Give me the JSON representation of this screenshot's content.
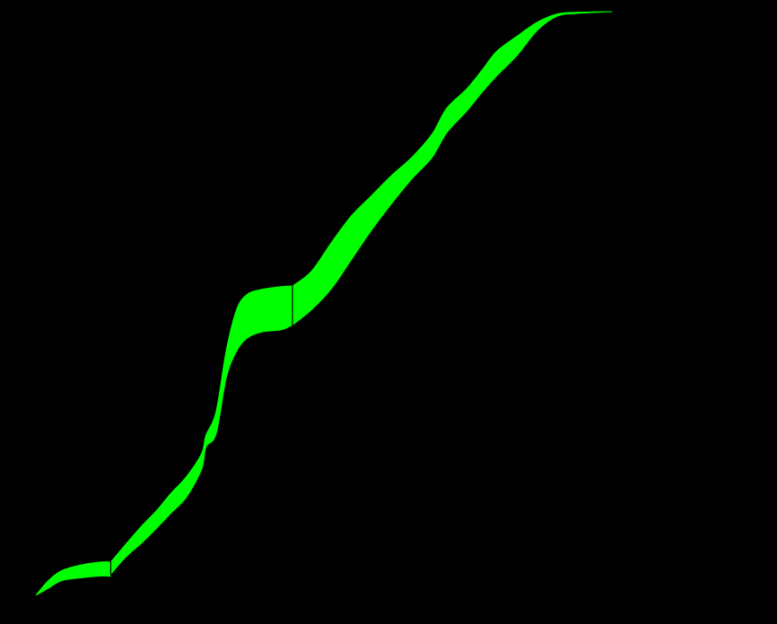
{
  "chart_data": {
    "type": "area",
    "title": "",
    "xlabel": "",
    "ylabel": "",
    "xlim": [
      0,
      1
    ],
    "ylim": [
      0,
      1
    ],
    "grid": false,
    "background": "#000000",
    "band_color": "#00ff00",
    "series": [
      {
        "kind": "band",
        "x": [
          0.0,
          0.017,
          0.035,
          0.062,
          0.089,
          0.102,
          0.103,
          0.124,
          0.145,
          0.166,
          0.186,
          0.207,
          0.228,
          0.234,
          0.248,
          0.262,
          0.276,
          0.29,
          0.31,
          0.338,
          0.352,
          0.353,
          0.379,
          0.407,
          0.434,
          0.462,
          0.49,
          0.517,
          0.545,
          0.565,
          0.593,
          0.614,
          0.634,
          0.662,
          0.69,
          0.717,
          0.745,
          0.793
        ],
        "lower": [
          0.0,
          0.012,
          0.025,
          0.03,
          0.033,
          0.033,
          0.036,
          0.066,
          0.089,
          0.115,
          0.141,
          0.168,
          0.216,
          0.254,
          0.277,
          0.373,
          0.418,
          0.44,
          0.451,
          0.455,
          0.463,
          0.463,
          0.489,
          0.526,
          0.575,
          0.626,
          0.672,
          0.713,
          0.75,
          0.792,
          0.83,
          0.862,
          0.89,
          0.925,
          0.968,
          0.992,
          0.997,
          1.0
        ],
        "upper": [
          0.0,
          0.025,
          0.042,
          0.052,
          0.057,
          0.057,
          0.057,
          0.088,
          0.118,
          0.145,
          0.175,
          0.203,
          0.243,
          0.274,
          0.315,
          0.42,
          0.489,
          0.515,
          0.524,
          0.529,
          0.53,
          0.53,
          0.555,
          0.605,
          0.65,
          0.685,
          0.72,
          0.75,
          0.79,
          0.834,
          0.868,
          0.9,
          0.932,
          0.958,
          0.982,
          0.996,
          0.999,
          1.0
        ]
      }
    ]
  }
}
